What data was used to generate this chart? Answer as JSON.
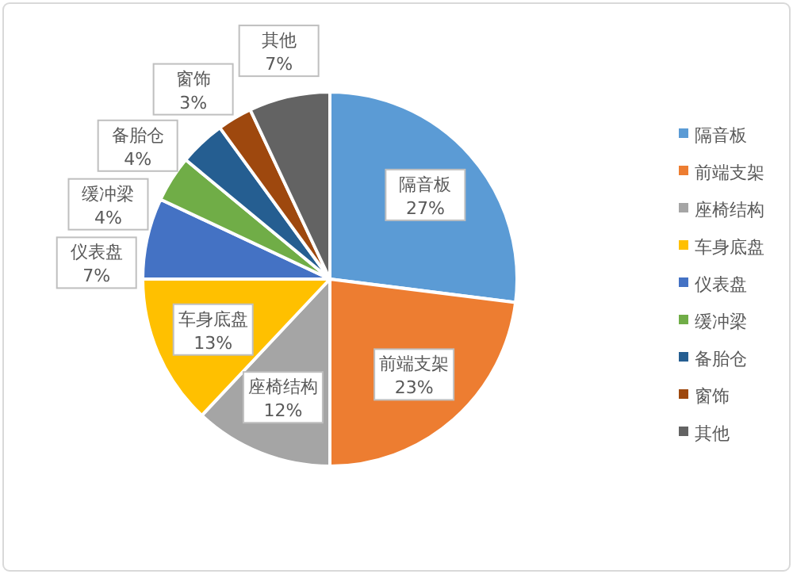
{
  "chart_data": {
    "type": "pie",
    "categories": [
      "隔音板",
      "前端支架",
      "座椅结构",
      "车身底盘",
      "仪表盘",
      "缓冲梁",
      "备胎仓",
      "窗饰",
      "其他"
    ],
    "values": [
      27,
      23,
      12,
      13,
      7,
      4,
      4,
      3,
      7
    ],
    "colors": [
      "#5b9bd5",
      "#ed7d31",
      "#a5a5a5",
      "#ffc000",
      "#4472c4",
      "#70ad47",
      "#255e91",
      "#9e480e",
      "#636363"
    ],
    "value_labels": [
      "27%",
      "23%",
      "12%",
      "13%",
      "7%",
      "4%",
      "4%",
      "3%",
      "7%"
    ],
    "legend": "right"
  }
}
